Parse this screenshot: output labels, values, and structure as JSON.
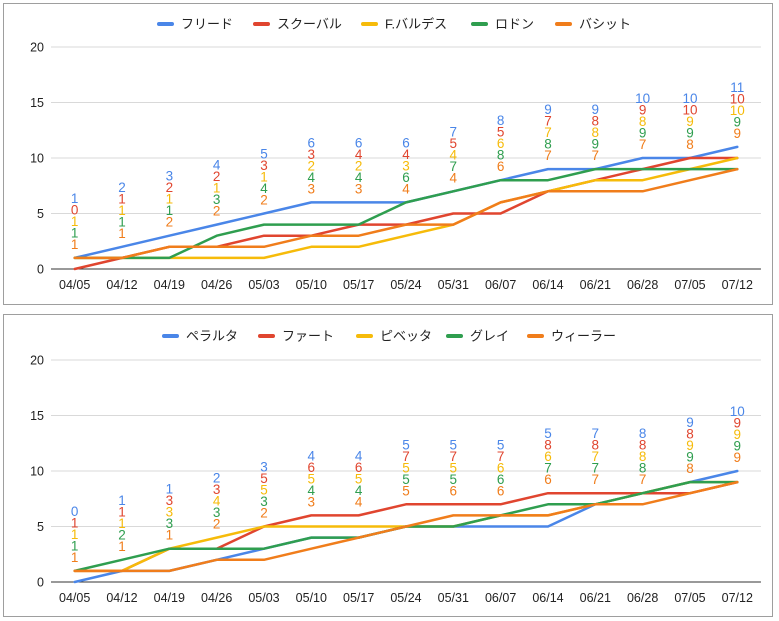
{
  "chart_data": [
    {
      "type": "line",
      "categories": [
        "04/05",
        "04/12",
        "04/19",
        "04/26",
        "05/03",
        "05/10",
        "05/17",
        "05/24",
        "05/31",
        "06/07",
        "06/14",
        "06/21",
        "06/28",
        "07/05",
        "07/12"
      ],
      "ylim": [
        0,
        20
      ],
      "yticks": [
        0,
        5,
        10,
        15,
        20
      ],
      "grid": true,
      "legend_position": "top",
      "series": [
        {
          "name": "フリード",
          "color": "#4a86e8",
          "values": [
            1,
            2,
            3,
            4,
            5,
            6,
            6,
            6,
            7,
            8,
            9,
            9,
            10,
            10,
            11
          ]
        },
        {
          "name": "スクーバル",
          "color": "#e0452f",
          "values": [
            0,
            1,
            2,
            2,
            3,
            3,
            4,
            4,
            5,
            5,
            7,
            8,
            9,
            10,
            10
          ]
        },
        {
          "name": "F.バルデス",
          "color": "#f6bb0a",
          "values": [
            1,
            1,
            1,
            1,
            1,
            2,
            2,
            3,
            4,
            6,
            7,
            8,
            8,
            9,
            10
          ]
        },
        {
          "name": "ロドン",
          "color": "#2f9e4f",
          "values": [
            1,
            1,
            1,
            3,
            4,
            4,
            4,
            6,
            7,
            8,
            8,
            9,
            9,
            9,
            9
          ]
        },
        {
          "name": "バシット",
          "color": "#f07d1b",
          "values": [
            1,
            1,
            2,
            2,
            2,
            3,
            3,
            4,
            4,
            6,
            7,
            7,
            7,
            8,
            9
          ]
        }
      ]
    },
    {
      "type": "line",
      "categories": [
        "04/05",
        "04/12",
        "04/19",
        "04/26",
        "05/03",
        "05/10",
        "05/17",
        "05/24",
        "05/31",
        "06/07",
        "06/14",
        "06/21",
        "06/28",
        "07/05",
        "07/12"
      ],
      "ylim": [
        0,
        20
      ],
      "yticks": [
        0,
        5,
        10,
        15,
        20
      ],
      "grid": true,
      "legend_position": "top",
      "series": [
        {
          "name": "ペラルタ",
          "color": "#4a86e8",
          "values": [
            0,
            1,
            1,
            2,
            3,
            4,
            4,
            5,
            5,
            5,
            5,
            7,
            8,
            9,
            10
          ]
        },
        {
          "name": "ファート",
          "color": "#e0452f",
          "values": [
            1,
            1,
            3,
            3,
            5,
            6,
            6,
            7,
            7,
            7,
            8,
            8,
            8,
            8,
            9
          ]
        },
        {
          "name": "ピベッタ",
          "color": "#f6bb0a",
          "values": [
            1,
            1,
            3,
            4,
            5,
            5,
            5,
            5,
            5,
            6,
            6,
            7,
            8,
            9,
            9
          ]
        },
        {
          "name": "グレイ",
          "color": "#2f9e4f",
          "values": [
            1,
            2,
            3,
            3,
            3,
            4,
            4,
            5,
            5,
            6,
            7,
            7,
            8,
            9,
            9
          ]
        },
        {
          "name": "ウィーラー",
          "color": "#f07d1b",
          "values": [
            1,
            1,
            1,
            2,
            2,
            3,
            4,
            5,
            6,
            6,
            6,
            7,
            7,
            8,
            9
          ]
        }
      ]
    }
  ]
}
